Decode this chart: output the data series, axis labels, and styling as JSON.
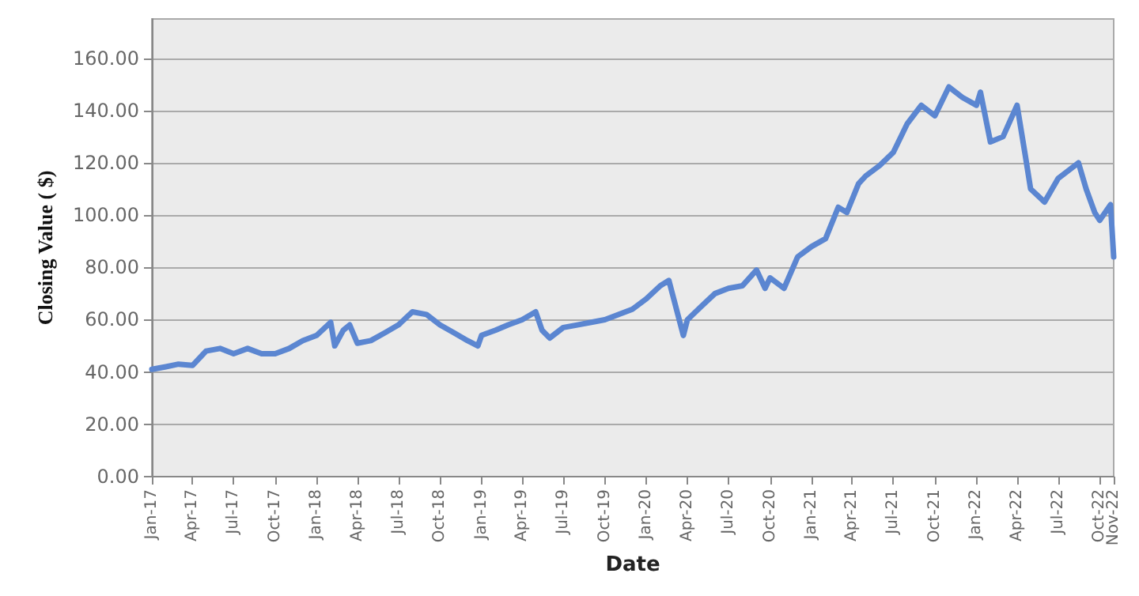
{
  "chart_data": {
    "type": "line",
    "xlabel": "Date",
    "ylabel": "Closing Value ( $)",
    "x": [
      "2017-01-01",
      "2017-02-01",
      "2017-03-01",
      "2017-04-01",
      "2017-05-01",
      "2017-06-01",
      "2017-07-01",
      "2017-08-01",
      "2017-09-01",
      "2017-10-01",
      "2017-11-01",
      "2017-12-01",
      "2018-01-01",
      "2018-02-01",
      "2018-02-10",
      "2018-03-01",
      "2018-03-15",
      "2018-04-01",
      "2018-05-01",
      "2018-06-01",
      "2018-07-01",
      "2018-08-01",
      "2018-09-01",
      "2018-10-01",
      "2018-11-01",
      "2018-12-01",
      "2018-12-24",
      "2019-01-01",
      "2019-02-01",
      "2019-03-01",
      "2019-04-01",
      "2019-05-01",
      "2019-05-15",
      "2019-06-01",
      "2019-07-01",
      "2019-08-01",
      "2019-09-01",
      "2019-10-01",
      "2019-11-01",
      "2019-12-01",
      "2020-01-01",
      "2020-02-01",
      "2020-02-20",
      "2020-03-23",
      "2020-04-01",
      "2020-05-01",
      "2020-06-01",
      "2020-07-01",
      "2020-08-01",
      "2020-09-01",
      "2020-09-20",
      "2020-10-01",
      "2020-11-01",
      "2020-12-01",
      "2021-01-01",
      "2021-02-01",
      "2021-03-01",
      "2021-03-20",
      "2021-04-15",
      "2021-05-01",
      "2021-06-01",
      "2021-07-01",
      "2021-08-01",
      "2021-09-01",
      "2021-10-01",
      "2021-11-01",
      "2021-12-01",
      "2022-01-01",
      "2022-01-10",
      "2022-02-01",
      "2022-03-01",
      "2022-04-01",
      "2022-04-20",
      "2022-05-01",
      "2022-06-01",
      "2022-07-01",
      "2022-08-15",
      "2022-09-01",
      "2022-09-20",
      "2022-10-01",
      "2022-10-25",
      "2022-11-01"
    ],
    "series": [
      {
        "color": "#5b86d1",
        "values": [
          41,
          42,
          43,
          42.5,
          48,
          49,
          47,
          49,
          47,
          47,
          49,
          52,
          54,
          59,
          50,
          56,
          58,
          51,
          52,
          55,
          58,
          63,
          62,
          58,
          55,
          52,
          50,
          54,
          56,
          58,
          60,
          63,
          56,
          53,
          57,
          58,
          59,
          60,
          62,
          64,
          68,
          73,
          75,
          54,
          60,
          65,
          70,
          72,
          73,
          79,
          72,
          76,
          72,
          84,
          88,
          91,
          103,
          101,
          112,
          115,
          119,
          124,
          135,
          142,
          138,
          149,
          145,
          142,
          147,
          128,
          130,
          142,
          122,
          110,
          105,
          114,
          120,
          110,
          101,
          98,
          104,
          84
        ]
      }
    ],
    "xlim": [
      "2017-01-01",
      "2022-11-01"
    ],
    "xticks": [
      {
        "value": "2017-01-01",
        "label": "Jan-17"
      },
      {
        "value": "2017-04-01",
        "label": "Apr-17"
      },
      {
        "value": "2017-07-01",
        "label": "Jul-17"
      },
      {
        "value": "2017-10-01",
        "label": "Oct-17"
      },
      {
        "value": "2018-01-01",
        "label": "Jan-18"
      },
      {
        "value": "2018-04-01",
        "label": "Apr-18"
      },
      {
        "value": "2018-07-01",
        "label": "Jul-18"
      },
      {
        "value": "2018-10-01",
        "label": "Oct-18"
      },
      {
        "value": "2019-01-01",
        "label": "Jan-19"
      },
      {
        "value": "2019-04-01",
        "label": "Apr-19"
      },
      {
        "value": "2019-07-01",
        "label": "Jul-19"
      },
      {
        "value": "2019-10-01",
        "label": "Oct-19"
      },
      {
        "value": "2020-01-01",
        "label": "Jan-20"
      },
      {
        "value": "2020-04-01",
        "label": "Apr-20"
      },
      {
        "value": "2020-07-01",
        "label": "Jul-20"
      },
      {
        "value": "2020-10-01",
        "label": "Oct-20"
      },
      {
        "value": "2021-01-01",
        "label": "Jan-21"
      },
      {
        "value": "2021-04-01",
        "label": "Apr-21"
      },
      {
        "value": "2021-07-01",
        "label": "Jul-21"
      },
      {
        "value": "2021-10-01",
        "label": "Oct-21"
      },
      {
        "value": "2022-01-01",
        "label": "Jan-22"
      },
      {
        "value": "2022-04-01",
        "label": "Apr-22"
      },
      {
        "value": "2022-07-01",
        "label": "Jul-22"
      },
      {
        "value": "2022-10-01",
        "label": "Oct-22"
      },
      {
        "value": "2022-11-01",
        "label": "Nov-22"
      }
    ],
    "ylim": [
      0,
      175
    ],
    "yticks": [
      {
        "value": 0,
        "label": "0.00"
      },
      {
        "value": 20,
        "label": "20.00"
      },
      {
        "value": 40,
        "label": "40.00"
      },
      {
        "value": 60,
        "label": "60.00"
      },
      {
        "value": 80,
        "label": "80.00"
      },
      {
        "value": 100,
        "label": "100.00"
      },
      {
        "value": 120,
        "label": "120.00"
      },
      {
        "value": 140,
        "label": "140.00"
      },
      {
        "value": 160,
        "label": "160.00"
      }
    ],
    "grid": "y",
    "marker": "none",
    "line_style": "solid"
  }
}
